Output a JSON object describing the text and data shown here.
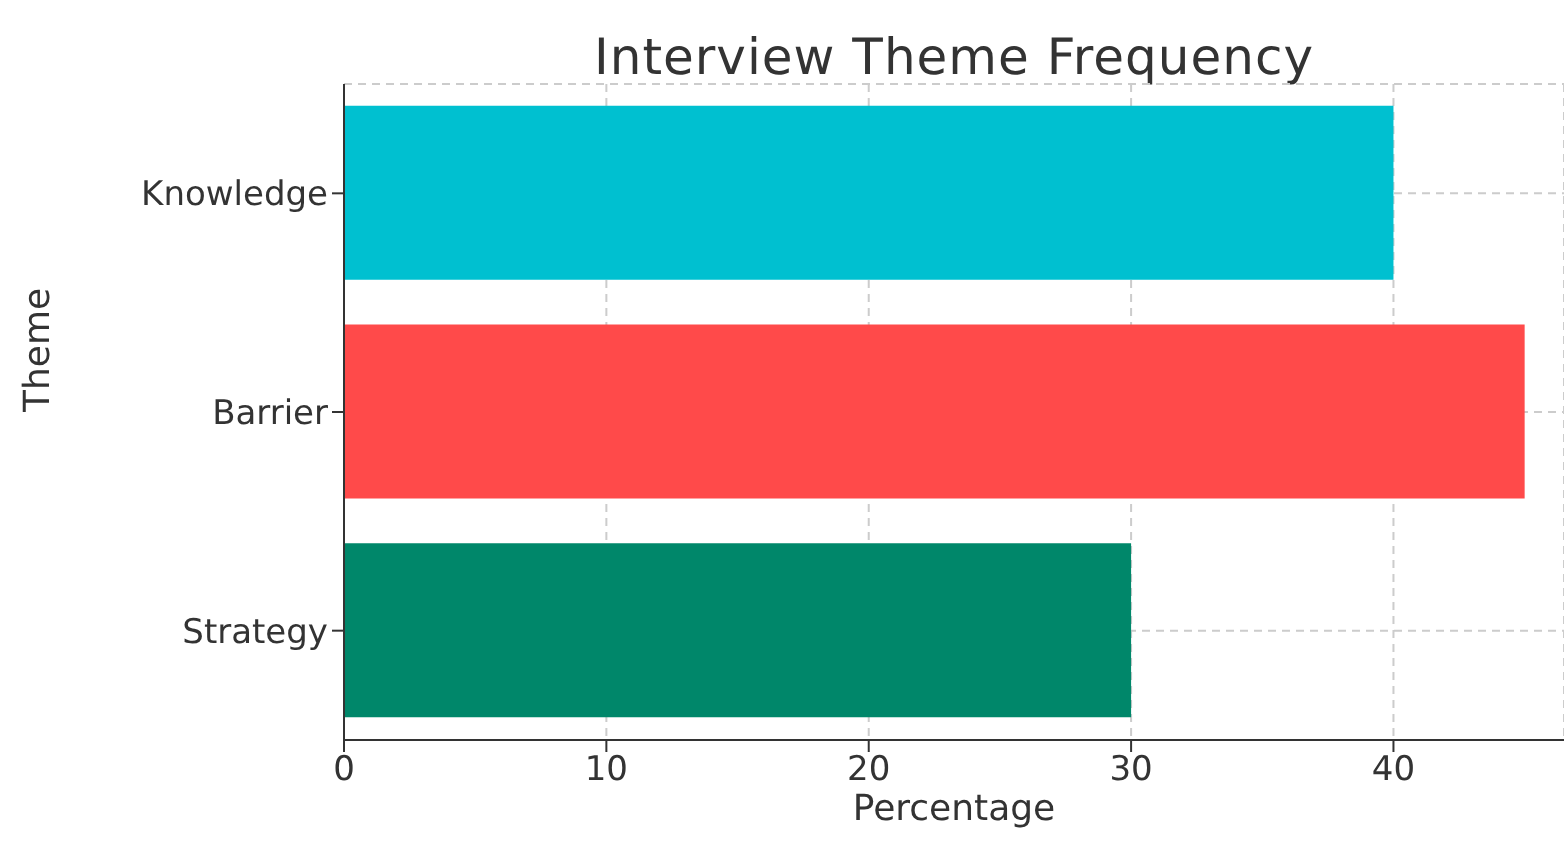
{
  "chart_data": {
    "type": "bar",
    "orientation": "horizontal",
    "title": "Interview Theme Frequency",
    "xlabel": "Percentage",
    "ylabel": "Theme",
    "categories": [
      "Knowledge",
      "Barrier",
      "Strategy"
    ],
    "values": [
      40,
      45,
      30
    ],
    "colors": [
      "#00c0d0",
      "#ff4a4a",
      "#00876a"
    ],
    "xlim": [
      0,
      46.5
    ],
    "xticks": [
      0,
      10,
      20,
      30,
      40
    ],
    "grid": true
  }
}
